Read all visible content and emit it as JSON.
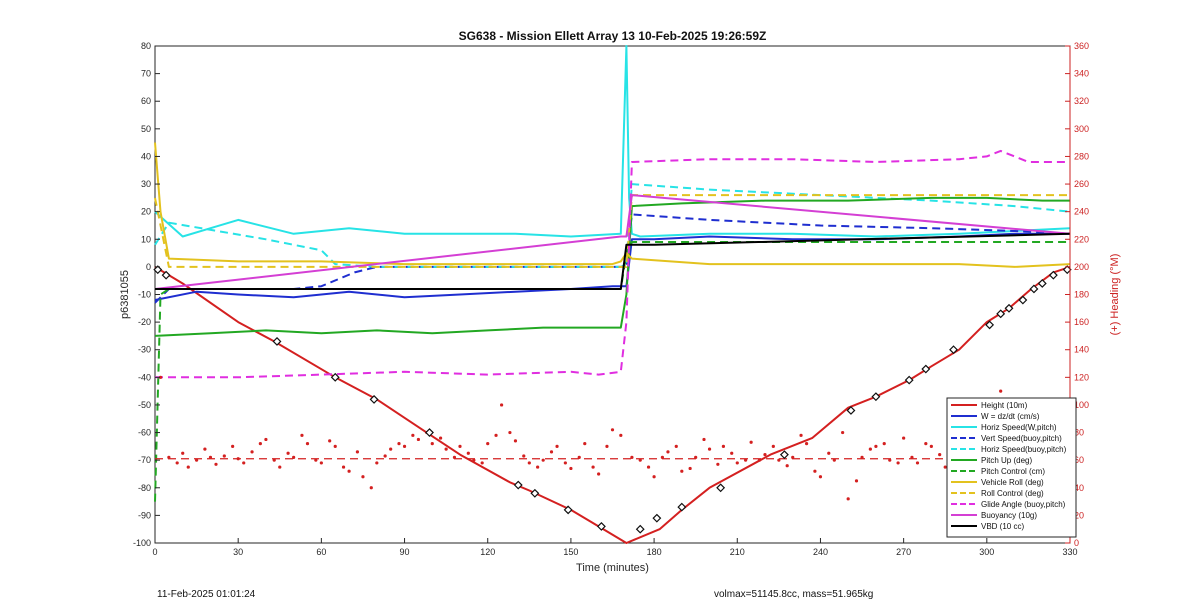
{
  "chart_data": {
    "type": "line",
    "title": "SG638 - Mission Ellett Array 13 10-Feb-2025 19:26:59Z",
    "xlabel": "Time (minutes)",
    "ylabel": "p6381055",
    "y2label": "(+) Heading (°M)",
    "xlim": [
      0,
      330
    ],
    "ylim": [
      -100,
      80
    ],
    "y2lim": [
      0,
      360
    ],
    "xticks": [
      0,
      30,
      60,
      90,
      120,
      150,
      180,
      210,
      240,
      270,
      300,
      330
    ],
    "yticks": [
      -100,
      -90,
      -80,
      -70,
      -60,
      -50,
      -40,
      -30,
      -20,
      -10,
      0,
      10,
      20,
      30,
      40,
      50,
      60,
      70,
      80
    ],
    "y2ticks": [
      0,
      20,
      40,
      60,
      80,
      100,
      120,
      140,
      160,
      180,
      200,
      220,
      240,
      260,
      280,
      300,
      320,
      340,
      360
    ],
    "legend_position": "bottom-right",
    "grid": false,
    "series": [
      {
        "name": "Height (10m)",
        "color": "#d42020",
        "style": "solid",
        "axis": "left",
        "x": [
          0,
          10,
          30,
          43,
          65,
          80,
          98,
          110,
          128,
          135,
          150,
          160,
          170,
          182,
          190,
          200,
          222,
          237,
          250,
          260,
          272,
          280,
          290,
          300,
          308,
          316,
          324,
          330
        ],
        "y": [
          0,
          -6,
          -20,
          -27,
          -40,
          -48,
          -60,
          -68,
          -78,
          -81,
          -88,
          -94,
          -100,
          -95,
          -88,
          -80,
          -68,
          -62,
          -51,
          -47,
          -41,
          -36,
          -30,
          -20,
          -15,
          -8,
          -2,
          0
        ]
      },
      {
        "name": "W = dz/dt (cm/s)",
        "color": "#1f2ed0",
        "style": "solid",
        "axis": "left",
        "x": [
          0,
          15,
          30,
          50,
          70,
          90,
          110,
          130,
          150,
          165,
          170,
          172,
          180,
          200,
          230,
          260,
          290,
          310,
          330
        ],
        "y": [
          -12,
          -9,
          -10,
          -11,
          -9,
          -11,
          -10,
          -9,
          -8,
          -7,
          -7,
          10,
          10,
          11,
          10,
          10,
          11,
          12,
          12
        ]
      },
      {
        "name": "Horiz Speed(W,pitch)",
        "color": "#27e3e6",
        "style": "solid",
        "axis": "left",
        "x": [
          0,
          10,
          20,
          30,
          50,
          70,
          90,
          110,
          130,
          150,
          168,
          170,
          171,
          172,
          175,
          200,
          230,
          260,
          290,
          310,
          330
        ],
        "y": [
          20,
          11,
          14,
          17,
          12,
          14,
          12,
          12,
          12,
          11,
          12,
          80,
          25,
          12,
          11,
          12,
          12,
          11,
          12,
          13,
          14
        ]
      },
      {
        "name": "Vert Speed(buoy,pitch)",
        "color": "#1f2ed0",
        "style": "dashed",
        "axis": "left",
        "x": [
          0,
          5,
          50,
          60,
          72,
          80,
          120,
          168,
          170,
          172,
          200,
          240,
          280,
          310,
          330
        ],
        "y": [
          -13,
          -8,
          -8,
          -7,
          -2,
          0,
          0,
          0,
          1,
          19,
          17,
          15,
          14,
          13,
          12
        ]
      },
      {
        "name": "Horiz Speed(buoy,pitch)",
        "color": "#27e3e6",
        "style": "dashed",
        "axis": "left",
        "x": [
          0,
          5,
          40,
          60,
          65,
          80,
          120,
          168,
          170,
          172,
          200,
          240,
          280,
          310,
          330
        ],
        "y": [
          8,
          16,
          10,
          6,
          1,
          0,
          0,
          0,
          1,
          30,
          28,
          26,
          24,
          22,
          20
        ]
      },
      {
        "name": "Pitch Up (deg)",
        "color": "#22a822",
        "style": "solid",
        "axis": "left",
        "x": [
          0,
          20,
          40,
          60,
          80,
          100,
          120,
          140,
          160,
          168,
          170,
          172,
          190,
          220,
          250,
          280,
          300,
          320,
          330
        ],
        "y": [
          -25,
          -24,
          -23,
          -24,
          -23,
          -24,
          -23,
          -22,
          -22,
          -22,
          -10,
          22,
          23,
          24,
          24,
          25,
          25,
          24,
          24
        ]
      },
      {
        "name": "Pitch Control (cm)",
        "color": "#22a822",
        "style": "dashed",
        "axis": "left",
        "x": [
          0,
          2,
          5,
          168,
          170,
          172,
          330
        ],
        "y": [
          -85,
          -10,
          -8,
          -8,
          5,
          9,
          9
        ]
      },
      {
        "name": "Vehicle Roll (deg)",
        "color": "#e3c21e",
        "style": "solid",
        "axis": "left",
        "x": [
          0,
          2,
          5,
          30,
          60,
          90,
          120,
          150,
          165,
          168,
          170,
          172,
          200,
          230,
          260,
          290,
          310,
          330
        ],
        "y": [
          45,
          20,
          3,
          2,
          2,
          1,
          1,
          1,
          1,
          2,
          5,
          3,
          1,
          1,
          1,
          1,
          0,
          1
        ]
      },
      {
        "name": "Roll Control (deg)",
        "color": "#e3c21e",
        "style": "dashed",
        "axis": "left",
        "x": [
          0,
          5,
          30,
          60,
          90,
          120,
          150,
          168,
          170,
          172,
          200,
          230,
          260,
          290,
          310,
          330
        ],
        "y": [
          25,
          0,
          0,
          0,
          0,
          0,
          0,
          0,
          0,
          26,
          26,
          26,
          26,
          26,
          26,
          26
        ]
      },
      {
        "name": "Glide Angle (buoy,pitch)",
        "color": "#e02ee0",
        "style": "dashed",
        "axis": "left",
        "x": [
          0,
          5,
          30,
          60,
          90,
          120,
          150,
          160,
          168,
          170,
          172,
          200,
          230,
          260,
          290,
          300,
          305,
          315,
          330
        ],
        "y": [
          -40,
          -40,
          -40,
          -39,
          -38,
          -39,
          -38,
          -39,
          -38,
          -20,
          38,
          39,
          39,
          38,
          39,
          40,
          42,
          38,
          38
        ]
      },
      {
        "name": "Buoyancy (10g)",
        "color": "#d43fd4",
        "style": "solid",
        "axis": "left",
        "x": [
          0,
          168,
          170,
          172,
          330
        ],
        "y": [
          -8,
          11,
          11,
          26,
          12
        ]
      },
      {
        "name": "VBD (10 cc)",
        "color": "#000000",
        "style": "solid",
        "axis": "left",
        "x": [
          0,
          168,
          170,
          180,
          330
        ],
        "y": [
          -8,
          -8,
          8,
          8,
          12
        ]
      }
    ],
    "heading": {
      "axis": "right",
      "color": "#d42020",
      "mean": 61,
      "x": [
        2,
        5,
        8,
        10,
        12,
        15,
        18,
        20,
        22,
        25,
        28,
        30,
        32,
        35,
        38,
        40,
        43,
        45,
        48,
        50,
        53,
        55,
        58,
        60,
        63,
        65,
        68,
        70,
        73,
        75,
        78,
        80,
        83,
        85,
        88,
        90,
        93,
        95,
        98,
        100,
        103,
        105,
        108,
        110,
        113,
        115,
        118,
        120,
        123,
        125,
        128,
        130,
        133,
        135,
        138,
        140,
        143,
        145,
        148,
        150,
        153,
        155,
        158,
        160,
        163,
        165,
        168,
        172,
        175,
        178,
        180,
        183,
        185,
        188,
        190,
        193,
        195,
        198,
        200,
        203,
        205,
        208,
        210,
        213,
        215,
        218,
        220,
        223,
        225,
        228,
        230,
        233,
        235,
        238,
        240,
        243,
        245,
        248,
        250,
        253,
        255,
        258,
        260,
        263,
        265,
        268,
        270,
        273,
        275,
        278,
        280,
        283,
        285,
        288,
        290,
        293,
        295,
        298,
        300,
        303,
        305,
        308,
        310,
        313,
        315,
        318,
        320,
        323,
        325,
        328
      ],
      "y": [
        120,
        62,
        58,
        65,
        55,
        60,
        68,
        62,
        57,
        63,
        70,
        61,
        58,
        66,
        72,
        75,
        60,
        55,
        65,
        62,
        78,
        72,
        60,
        58,
        74,
        70,
        55,
        52,
        66,
        48,
        40,
        58,
        63,
        68,
        72,
        70,
        78,
        75,
        80,
        72,
        76,
        68,
        62,
        70,
        65,
        60,
        58,
        72,
        78,
        100,
        80,
        74,
        63,
        58,
        55,
        60,
        66,
        70,
        58,
        54,
        62,
        72,
        55,
        50,
        70,
        82,
        78,
        62,
        60,
        55,
        48,
        62,
        66,
        70,
        52,
        54,
        62,
        75,
        68,
        57,
        70,
        65,
        58,
        60,
        73,
        60,
        64,
        70,
        60,
        56,
        62,
        78,
        72,
        52,
        48,
        65,
        60,
        80,
        32,
        45,
        62,
        68,
        70,
        72,
        60,
        58,
        76,
        62,
        58,
        72,
        70,
        64,
        55,
        48,
        40,
        60,
        68,
        85,
        75,
        95,
        110,
        78,
        70,
        66,
        60,
        62,
        70,
        72,
        60,
        52
      ]
    },
    "markers": {
      "x": [
        1,
        4,
        44,
        65,
        79,
        99,
        131,
        137,
        149,
        161,
        175,
        181,
        190,
        204,
        227,
        251,
        260,
        272,
        278,
        288,
        301,
        305,
        308,
        313,
        317,
        320,
        324,
        329
      ],
      "y": [
        -1,
        -3,
        -27,
        -40,
        -48,
        -60,
        -79,
        -82,
        -88,
        -94,
        -95,
        -91,
        -87,
        -80,
        -68,
        -52,
        -47,
        -41,
        -37,
        -30,
        -21,
        -17,
        -15,
        -12,
        -8,
        -6,
        -3,
        -1
      ]
    }
  },
  "footer": {
    "left": "11-Feb-2025 01:01:24",
    "right": "volmax=51145.8cc, mass=51.965kg"
  }
}
